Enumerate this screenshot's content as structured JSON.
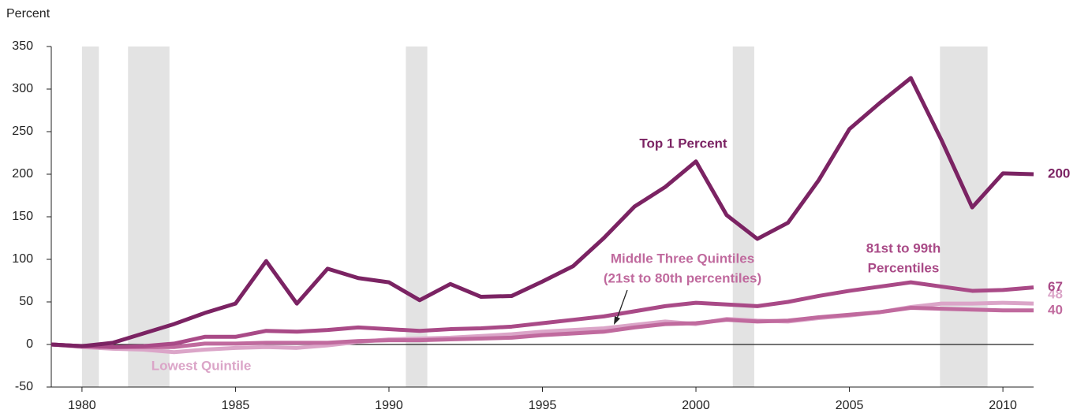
{
  "chart_data": {
    "type": "line",
    "y_axis_label": "Percent",
    "x": [
      1979,
      1980,
      1981,
      1982,
      1983,
      1984,
      1985,
      1986,
      1987,
      1988,
      1989,
      1990,
      1991,
      1992,
      1993,
      1994,
      1995,
      1996,
      1997,
      1998,
      1999,
      2000,
      2001,
      2002,
      2003,
      2004,
      2005,
      2006,
      2007,
      2008,
      2009,
      2010,
      2011
    ],
    "xlim": [
      1979,
      2011
    ],
    "xticks": [
      1980,
      1985,
      1990,
      1995,
      2000,
      2005,
      2010
    ],
    "ylim": [
      -50,
      350
    ],
    "yticks": [
      -50,
      0,
      50,
      100,
      150,
      200,
      250,
      300,
      350
    ],
    "recessions": [
      [
        1980,
        1980.55
      ],
      [
        1981.5,
        1982.85
      ],
      [
        1990.55,
        1991.25
      ],
      [
        2001.2,
        2001.9
      ],
      [
        2007.95,
        2009.5
      ]
    ],
    "recession_color": "#e3e3e3",
    "series": [
      {
        "label": [
          "Lowest Quintile"
        ],
        "color": "#dba5c8",
        "values": [
          0,
          -3,
          -5,
          -6,
          -9,
          -6,
          -4,
          -3,
          -4,
          -1,
          3,
          6,
          7,
          8,
          10,
          12,
          15,
          17,
          19,
          23,
          27,
          24,
          30,
          28,
          27,
          31,
          34,
          38,
          44,
          48,
          48,
          49,
          48
        ]
      },
      {
        "label": [
          "Middle Three Quintiles",
          "(21st to 80th percentiles)"
        ],
        "color": "#c06a9e",
        "values": [
          0,
          -2,
          -3,
          -3,
          -3,
          1,
          1,
          2,
          2,
          2,
          4,
          5,
          5,
          6,
          7,
          8,
          11,
          13,
          15,
          20,
          24,
          25,
          29,
          27,
          28,
          32,
          35,
          38,
          43,
          42,
          41,
          40,
          40
        ]
      },
      {
        "label": [
          "81st to 99th",
          "Percentiles"
        ],
        "color": "#a94a87",
        "values": [
          0,
          -2,
          -3,
          -2,
          1,
          9,
          9,
          16,
          15,
          17,
          20,
          18,
          16,
          18,
          19,
          21,
          25,
          29,
          33,
          39,
          45,
          49,
          47,
          45,
          50,
          57,
          63,
          68,
          73,
          68,
          63,
          64,
          67
        ]
      },
      {
        "label": [
          "Top 1 Percent"
        ],
        "color": "#7b2363",
        "values": [
          0,
          -2,
          2,
          13,
          24,
          37,
          48,
          98,
          48,
          89,
          78,
          73,
          52,
          71,
          56,
          57,
          74,
          92,
          125,
          162,
          185,
          215,
          152,
          124,
          143,
          193,
          253,
          284,
          313,
          240,
          161,
          201,
          200
        ]
      }
    ]
  }
}
